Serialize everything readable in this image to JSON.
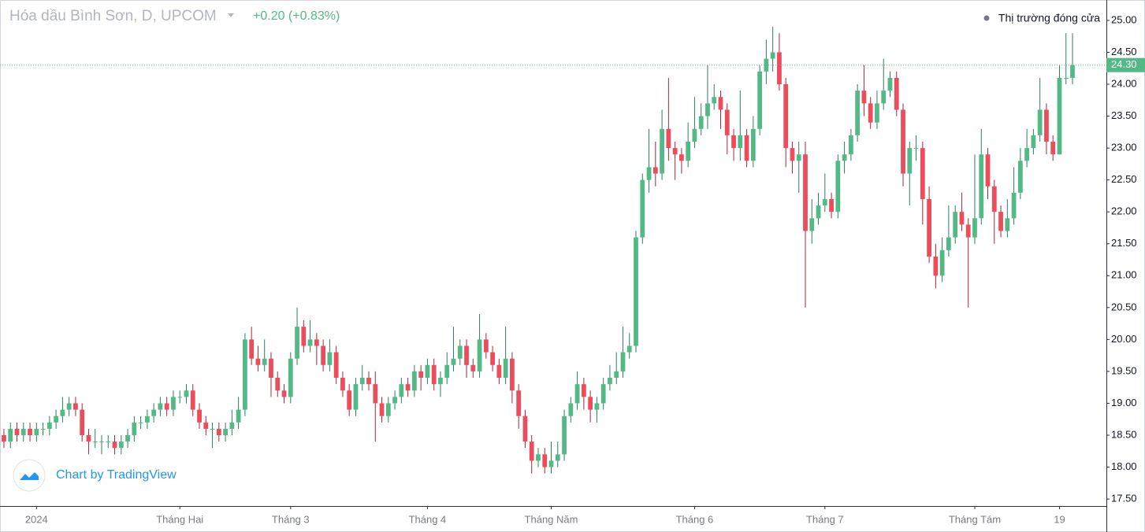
{
  "chart_data": {
    "type": "candlestick",
    "title": "Hóa dầu Bình Sơn, D, UPCOM",
    "change": "+0.20 (+0.83%)",
    "status": "Thị trường đóng cửa",
    "watermark": "Chart by TradingView",
    "up_color": "#53b987",
    "down_color": "#eb4d5c",
    "last_price": {
      "value": 24.3,
      "label": "24.30"
    },
    "open": [
      18.5,
      18.4,
      18.6,
      18.5,
      18.6,
      18.5,
      18.6,
      18.6,
      18.7,
      18.8,
      18.9,
      19.0,
      18.9,
      18.5,
      18.4,
      18.4,
      18.4,
      18.4,
      18.3,
      18.4,
      18.5,
      18.7,
      18.7,
      18.8,
      18.9,
      19.0,
      18.9,
      19.1,
      19.1,
      19.2,
      18.9,
      18.7,
      18.6,
      18.6,
      18.5,
      18.6,
      18.7,
      18.9,
      20.0,
      19.7,
      19.6,
      19.7,
      19.4,
      19.2,
      19.1,
      19.7,
      20.2,
      19.9,
      20.0,
      19.9,
      19.6,
      19.8,
      19.4,
      19.2,
      18.9,
      19.3,
      19.4,
      19.3,
      19.0,
      18.8,
      19.0,
      19.1,
      19.3,
      19.2,
      19.5,
      19.4,
      19.6,
      19.3,
      19.4,
      19.6,
      19.7,
      19.9,
      19.6,
      19.5,
      20.0,
      19.8,
      19.6,
      19.4,
      19.7,
      19.2,
      18.8,
      18.4,
      18.1,
      18.2,
      18.0,
      18.1,
      18.2,
      18.8,
      19.0,
      19.3,
      19.1,
      18.9,
      19.0,
      19.3,
      19.4,
      19.5,
      19.8,
      19.9,
      21.6,
      22.5,
      22.7,
      22.6,
      23.3,
      23.0,
      22.9,
      22.8,
      23.1,
      23.3,
      23.5,
      23.7,
      23.8,
      23.6,
      23.2,
      23.0,
      23.2,
      22.8,
      23.3,
      24.2,
      24.4,
      24.5,
      24.0,
      23.0,
      22.8,
      22.9,
      21.7,
      21.9,
      22.1,
      22.2,
      22.0,
      22.8,
      22.9,
      23.2,
      23.9,
      23.7,
      23.4,
      23.7,
      23.9,
      24.1,
      23.6,
      22.6,
      23.0,
      23.0,
      22.2,
      21.3,
      21.0,
      21.4,
      21.6,
      22.0,
      21.8,
      21.6,
      21.9,
      22.9,
      22.4,
      22.0,
      21.7,
      21.9,
      22.3,
      22.8,
      23.0,
      23.2,
      23.6,
      23.1,
      22.9,
      24.1,
      24.1
    ],
    "high": [
      18.6,
      18.7,
      18.7,
      18.7,
      18.7,
      18.7,
      18.7,
      18.8,
      18.9,
      19.1,
      19.1,
      19.1,
      19.0,
      18.6,
      18.6,
      18.5,
      18.5,
      18.5,
      18.5,
      18.6,
      18.8,
      18.8,
      18.9,
      19.0,
      19.1,
      19.1,
      19.2,
      19.2,
      19.3,
      19.3,
      19.0,
      18.8,
      18.7,
      18.7,
      18.7,
      18.9,
      19.1,
      20.1,
      20.2,
      19.9,
      20.0,
      19.8,
      19.5,
      19.3,
      19.8,
      20.5,
      20.3,
      20.3,
      20.1,
      20.0,
      20.0,
      19.9,
      19.5,
      19.3,
      19.4,
      19.6,
      19.5,
      19.5,
      19.1,
      19.1,
      19.2,
      19.4,
      19.4,
      19.6,
      19.6,
      19.7,
      19.7,
      19.5,
      19.8,
      20.2,
      20.0,
      20.0,
      19.7,
      20.4,
      20.1,
      19.9,
      19.7,
      20.2,
      19.8,
      19.3,
      18.9,
      18.5,
      18.3,
      18.3,
      18.4,
      18.4,
      18.9,
      19.1,
      19.5,
      19.4,
      19.2,
      19.1,
      19.4,
      19.6,
      19.8,
      20.2,
      20.1,
      21.7,
      22.6,
      23.3,
      23.1,
      23.6,
      24.1,
      23.1,
      23.0,
      23.4,
      23.8,
      23.7,
      24.3,
      24.0,
      23.9,
      23.7,
      23.3,
      23.9,
      23.3,
      23.5,
      24.3,
      24.7,
      24.9,
      24.8,
      24.1,
      23.1,
      23.1,
      23.1,
      22.2,
      22.3,
      22.6,
      22.3,
      22.9,
      23.1,
      23.3,
      24.0,
      24.3,
      23.8,
      23.9,
      24.4,
      24.2,
      24.2,
      23.7,
      23.1,
      23.2,
      23.1,
      22.4,
      21.5,
      21.6,
      22.1,
      22.1,
      22.3,
      21.9,
      22.9,
      23.3,
      23.0,
      22.5,
      22.1,
      22.2,
      22.7,
      23.0,
      23.3,
      23.3,
      24.1,
      23.7,
      23.2,
      24.3,
      24.8,
      24.8
    ],
    "low": [
      18.3,
      18.3,
      18.4,
      18.4,
      18.4,
      18.4,
      18.5,
      18.5,
      18.6,
      18.7,
      18.8,
      18.8,
      18.4,
      18.2,
      18.3,
      18.2,
      18.3,
      18.2,
      18.2,
      18.3,
      18.4,
      18.6,
      18.6,
      18.7,
      18.8,
      18.8,
      18.8,
      19.0,
      19.0,
      18.8,
      18.6,
      18.5,
      18.3,
      18.4,
      18.4,
      18.5,
      18.6,
      18.8,
      19.6,
      19.5,
      19.5,
      19.1,
      19.1,
      19.0,
      19.0,
      19.6,
      19.8,
      19.8,
      19.6,
      19.5,
      19.5,
      19.3,
      19.1,
      18.8,
      18.8,
      19.2,
      19.2,
      18.4,
      18.7,
      18.7,
      18.9,
      19.0,
      19.1,
      19.1,
      19.2,
      19.3,
      19.2,
      19.1,
      19.3,
      19.5,
      19.6,
      19.4,
      19.4,
      19.4,
      19.7,
      19.5,
      19.3,
      19.3,
      19.0,
      18.6,
      18.3,
      17.9,
      18.0,
      17.9,
      17.9,
      18.0,
      18.1,
      18.7,
      18.9,
      18.9,
      18.7,
      18.7,
      18.9,
      19.2,
      19.3,
      19.4,
      19.7,
      19.8,
      21.5,
      22.3,
      22.4,
      22.5,
      22.8,
      22.5,
      22.6,
      22.7,
      23.0,
      23.2,
      23.3,
      23.6,
      23.3,
      22.9,
      22.8,
      22.8,
      22.7,
      22.7,
      23.2,
      24.0,
      24.2,
      23.9,
      22.7,
      22.6,
      22.3,
      20.5,
      21.5,
      21.8,
      22.0,
      21.9,
      21.9,
      22.6,
      22.8,
      23.1,
      23.5,
      23.3,
      23.3,
      23.6,
      23.8,
      23.5,
      22.4,
      22.1,
      22.8,
      21.8,
      21.2,
      20.8,
      20.9,
      21.3,
      21.5,
      21.7,
      20.5,
      21.5,
      21.8,
      22.2,
      21.5,
      21.6,
      21.6,
      21.8,
      22.2,
      22.7,
      22.9,
      23.1,
      22.9,
      22.8,
      22.9,
      24.0,
      24.0
    ],
    "close": [
      18.4,
      18.6,
      18.5,
      18.6,
      18.5,
      18.6,
      18.6,
      18.7,
      18.8,
      18.9,
      19.0,
      18.9,
      18.5,
      18.4,
      18.4,
      18.4,
      18.4,
      18.3,
      18.4,
      18.5,
      18.7,
      18.7,
      18.8,
      18.9,
      19.0,
      18.9,
      19.1,
      19.1,
      19.2,
      18.9,
      18.7,
      18.6,
      18.6,
      18.5,
      18.6,
      18.7,
      18.9,
      20.0,
      19.7,
      19.6,
      19.7,
      19.4,
      19.2,
      19.1,
      19.7,
      20.2,
      19.9,
      20.0,
      19.9,
      19.6,
      19.8,
      19.4,
      19.2,
      18.9,
      19.3,
      19.4,
      19.3,
      19.0,
      18.8,
      19.0,
      19.1,
      19.3,
      19.2,
      19.5,
      19.4,
      19.6,
      19.3,
      19.4,
      19.6,
      19.7,
      19.9,
      19.6,
      19.5,
      20.0,
      19.8,
      19.6,
      19.4,
      19.7,
      19.2,
      18.8,
      18.4,
      18.1,
      18.2,
      18.0,
      18.1,
      18.2,
      18.8,
      19.0,
      19.3,
      19.1,
      18.9,
      19.0,
      19.3,
      19.4,
      19.5,
      19.8,
      19.9,
      21.6,
      22.5,
      22.7,
      22.6,
      23.3,
      23.0,
      22.9,
      22.8,
      23.1,
      23.3,
      23.5,
      23.7,
      23.8,
      23.6,
      23.2,
      23.0,
      23.2,
      22.8,
      23.3,
      24.2,
      24.4,
      24.5,
      24.0,
      23.0,
      22.8,
      22.9,
      21.7,
      21.9,
      22.1,
      22.2,
      22.0,
      22.8,
      22.9,
      23.2,
      23.9,
      23.7,
      23.4,
      23.7,
      23.9,
      24.1,
      23.6,
      22.6,
      23.0,
      23.0,
      22.2,
      21.3,
      21.0,
      21.4,
      21.6,
      22.0,
      21.8,
      21.6,
      21.9,
      22.9,
      22.4,
      22.0,
      21.7,
      21.9,
      22.3,
      22.8,
      23.0,
      23.2,
      23.6,
      23.1,
      22.9,
      24.1,
      24.1,
      24.3
    ],
    "xlim": [
      -0.6,
      169.2
    ],
    "xticks": [
      {
        "value": 5,
        "label": "2024"
      },
      {
        "value": 27,
        "label": "Tháng Hai"
      },
      {
        "value": 44,
        "label": "Tháng 3"
      },
      {
        "value": 65,
        "label": "Tháng 4"
      },
      {
        "value": 84,
        "label": "Tháng Năm"
      },
      {
        "value": 106,
        "label": "Tháng 6"
      },
      {
        "value": 126,
        "label": "Tháng 7"
      },
      {
        "value": 149,
        "label": "Tháng Tám"
      },
      {
        "value": 162,
        "label": "19"
      }
    ],
    "ylim": [
      17.39,
      25.32
    ],
    "yticks": [
      {
        "value": 17.5,
        "label": "17.50"
      },
      {
        "value": 18,
        "label": "18.00"
      },
      {
        "value": 18.5,
        "label": "18.50"
      },
      {
        "value": 19,
        "label": "19.00"
      },
      {
        "value": 19.5,
        "label": "19.50"
      },
      {
        "value": 20,
        "label": "20.00"
      },
      {
        "value": 20.5,
        "label": "20.50"
      },
      {
        "value": 21,
        "label": "21.00"
      },
      {
        "value": 21.5,
        "label": "21.50"
      },
      {
        "value": 22,
        "label": "22.00"
      },
      {
        "value": 22.5,
        "label": "22.50"
      },
      {
        "value": 23,
        "label": "23.00"
      },
      {
        "value": 23.5,
        "label": "23.50"
      },
      {
        "value": 24,
        "label": "24.00"
      },
      {
        "value": 24.5,
        "label": "24.50"
      },
      {
        "value": 25,
        "label": "25.00"
      }
    ]
  }
}
